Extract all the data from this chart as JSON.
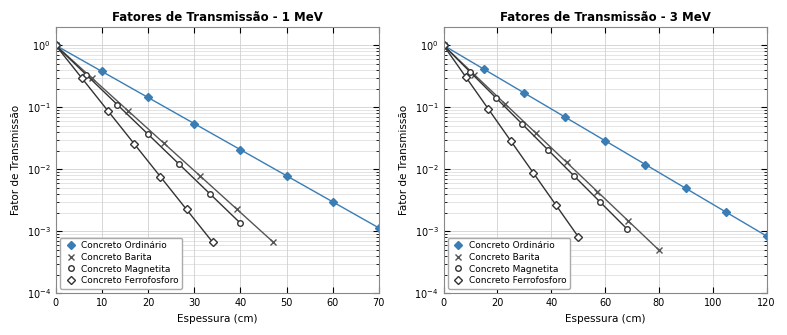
{
  "plots": [
    {
      "title": "Fatores de Transmissão - 1 MeV",
      "xlim": [
        0,
        70
      ],
      "xticks": [
        0,
        10,
        20,
        30,
        40,
        50,
        60,
        70
      ],
      "series": [
        {
          "label": "Concreto Ordinário",
          "mu": 0.0968,
          "x_max": 70,
          "n_points": 8,
          "color": "#3a7db5",
          "marker": "D",
          "markerfacecolor": "#3a7db5",
          "markersize": 4,
          "linewidth": 1.0
        },
        {
          "label": "Concreto Barita",
          "mu": 0.155,
          "x_max": 47,
          "n_points": 7,
          "color": "#555555",
          "marker": "x",
          "markerfacecolor": "#555555",
          "markersize": 5,
          "linewidth": 1.0
        },
        {
          "label": "Concreto Magnetita",
          "mu": 0.165,
          "x_max": 40,
          "n_points": 7,
          "color": "#333333",
          "marker": "o",
          "markerfacecolor": "white",
          "markersize": 4,
          "linewidth": 1.0
        },
        {
          "label": "Concreto Ferrofosforo",
          "mu": 0.215,
          "x_max": 34,
          "n_points": 7,
          "color": "#333333",
          "marker": "D",
          "markerfacecolor": "white",
          "markersize": 4,
          "linewidth": 1.0
        }
      ]
    },
    {
      "title": "Fatores de Transmissão - 3 MeV",
      "xlim": [
        0,
        120
      ],
      "xticks": [
        0,
        20,
        40,
        60,
        80,
        100,
        120
      ],
      "series": [
        {
          "label": "Concreto Ordinário",
          "mu": 0.059,
          "x_max": 120,
          "n_points": 9,
          "color": "#3a7db5",
          "marker": "D",
          "markerfacecolor": "#3a7db5",
          "markersize": 4,
          "linewidth": 1.0
        },
        {
          "label": "Concreto Barita",
          "mu": 0.095,
          "x_max": 80,
          "n_points": 8,
          "color": "#555555",
          "marker": "x",
          "markerfacecolor": "#555555",
          "markersize": 5,
          "linewidth": 1.0
        },
        {
          "label": "Concreto Magnetita",
          "mu": 0.1,
          "x_max": 68,
          "n_points": 8,
          "color": "#333333",
          "marker": "o",
          "markerfacecolor": "white",
          "markersize": 4,
          "linewidth": 1.0
        },
        {
          "label": "Concreto Ferrofosforo",
          "mu": 0.142,
          "x_max": 50,
          "n_points": 7,
          "color": "#333333",
          "marker": "D",
          "markerfacecolor": "white",
          "markersize": 4,
          "linewidth": 1.0
        }
      ]
    }
  ],
  "ylabel": "Fator de Transmissão",
  "xlabel": "Espessura (cm)",
  "ylim": [
    0.0001,
    2.0
  ],
  "yticks": [
    0.0001,
    0.001,
    0.01,
    0.1,
    1.0
  ],
  "background_color": "#ffffff",
  "grid_color": "#d0d0d0",
  "legend_loc": "lower left",
  "legend_fontsize": 6.5,
  "title_fontsize": 8.5,
  "label_fontsize": 7.5,
  "tick_fontsize": 7
}
